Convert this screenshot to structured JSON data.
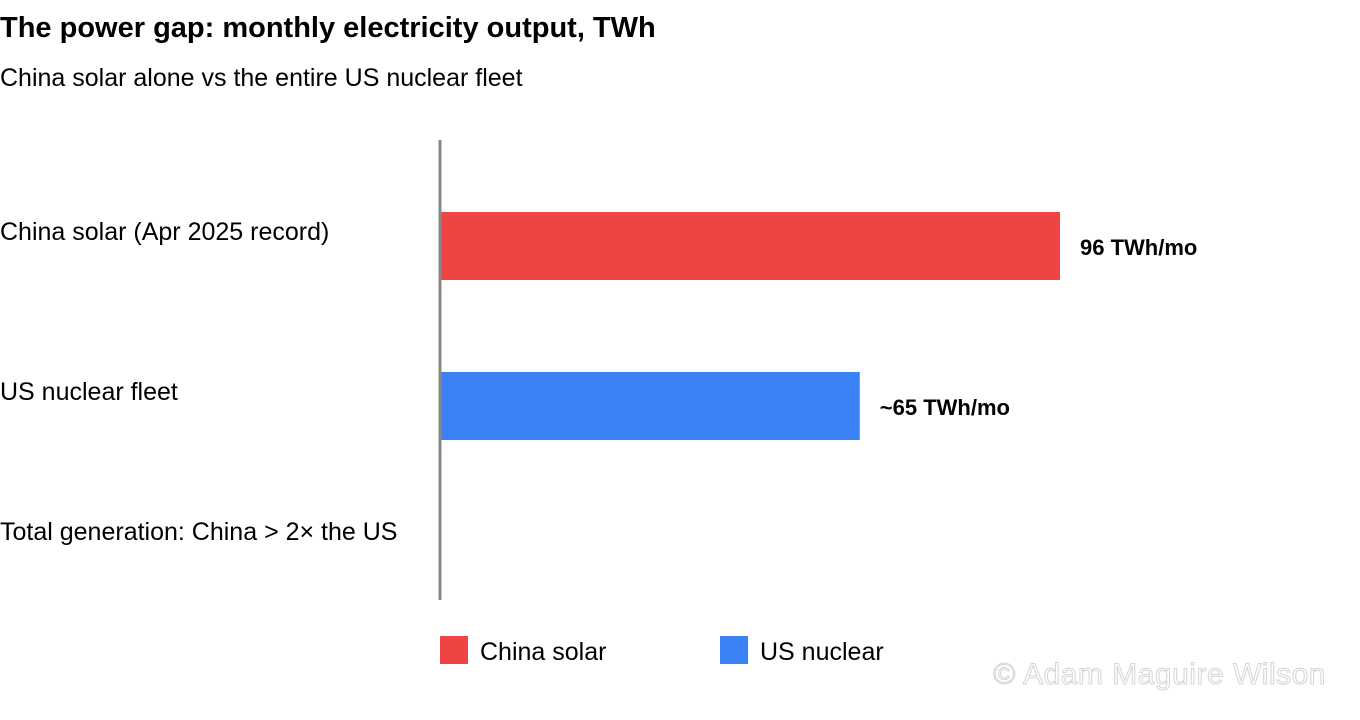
{
  "chart_data": {
    "type": "bar",
    "orientation": "horizontal",
    "title": "The power gap: monthly electricity output, TWh",
    "subtitle": "China solar alone vs the entire US nuclear fleet",
    "categories": [
      "China solar (Apr 2025 record)",
      "US nuclear fleet",
      "Total generation: China > 2× the US"
    ],
    "values": [
      96,
      65,
      null
    ],
    "data_labels": [
      "96 TWh/mo",
      "~65 TWh/mo",
      ""
    ],
    "colors": [
      "#ef4444",
      "#3b82f6"
    ],
    "xlim": [
      0,
      120
    ],
    "grid": false,
    "legend": {
      "placement": "bottom",
      "entries": [
        {
          "label": "China solar",
          "color": "#ef4444"
        },
        {
          "label": "US nuclear",
          "color": "#3b82f6"
        }
      ]
    }
  },
  "watermark": "© Adam Maguire Wilson"
}
